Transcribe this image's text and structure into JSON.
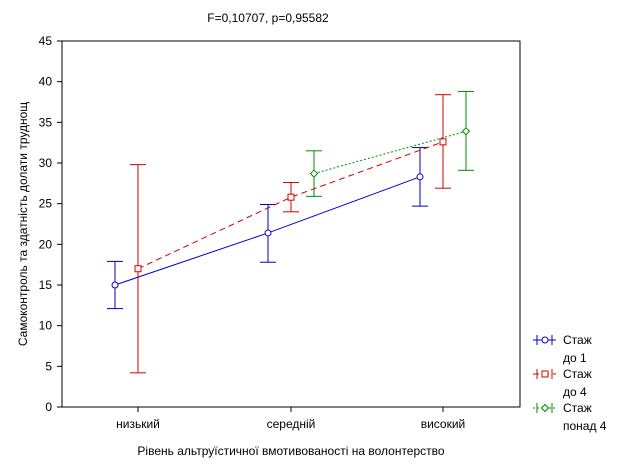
{
  "chart_data": {
    "type": "line",
    "title": "F=0,10707, p=0,95582",
    "xlabel": "Рівень альтруїстичної вмотивованості на волонтерство",
    "ylabel": "Самоконтроль та здатність долати труднощ",
    "categories": [
      "низький",
      "середній",
      "високий"
    ],
    "ylim": [
      0,
      45
    ],
    "yticks": [
      0,
      5,
      10,
      15,
      20,
      25,
      30,
      35,
      40,
      45
    ],
    "grid": false,
    "legend_position": "right-bottom",
    "series": [
      {
        "name": "Стаж до 1",
        "legend_lines": [
          "Стаж",
          "до 1"
        ],
        "color": "#0000c8",
        "line_style": "solid",
        "marker": "circle",
        "values": [
          15.0,
          21.4,
          28.3
        ],
        "error_low": [
          12.1,
          17.8,
          24.7
        ],
        "error_high": [
          17.9,
          24.9,
          31.9
        ]
      },
      {
        "name": "Стаж до 4",
        "legend_lines": [
          "Стаж",
          "до 4"
        ],
        "color": "#d40000",
        "line_style": "dashed",
        "marker": "square",
        "values": [
          17.0,
          25.8,
          32.6
        ],
        "error_low": [
          4.2,
          24.0,
          26.9
        ],
        "error_high": [
          29.8,
          27.6,
          38.4
        ]
      },
      {
        "name": "Стаж понад 4",
        "legend_lines": [
          "Стаж",
          "понад 4"
        ],
        "color": "#008c00",
        "line_style": "dotted",
        "marker": "diamond",
        "values": [
          null,
          28.7,
          33.9
        ],
        "error_low": [
          null,
          25.9,
          29.1
        ],
        "error_high": [
          null,
          31.5,
          38.8
        ]
      }
    ]
  }
}
